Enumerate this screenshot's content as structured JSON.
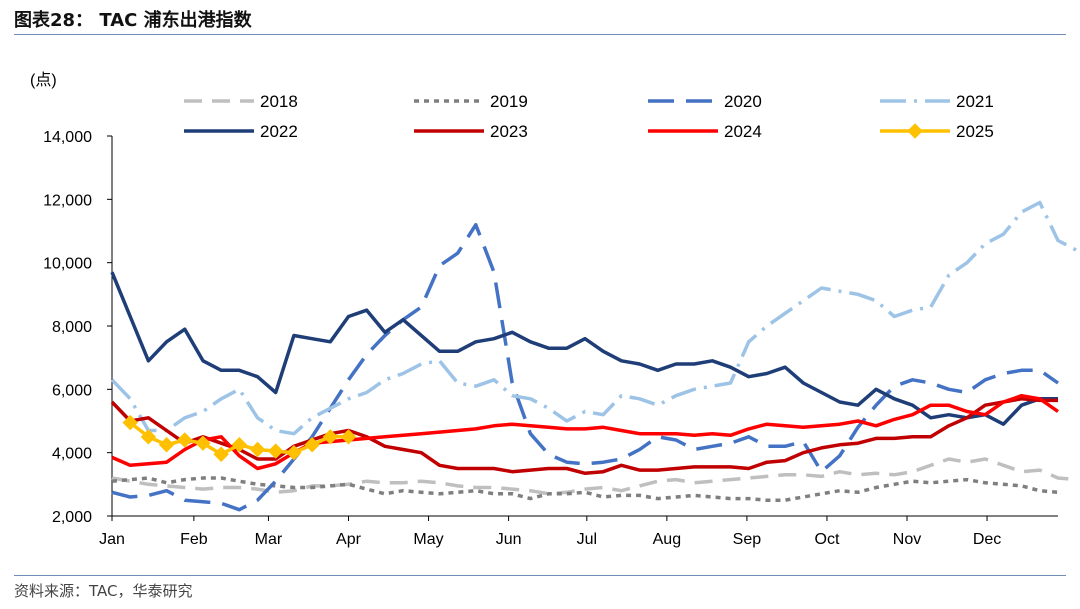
{
  "header": {
    "title": "图表28： TAC 浦东出港指数"
  },
  "footer": {
    "source": "资料来源：TAC，华泰研究"
  },
  "chart_data": {
    "type": "line",
    "unit_label": "(点)",
    "ylim": [
      2000,
      14000
    ],
    "yticks": [
      2000,
      4000,
      6000,
      8000,
      10000,
      12000,
      14000
    ],
    "ytick_labels": [
      "2,000",
      "4,000",
      "6,000",
      "8,000",
      "10,000",
      "12,000",
      "14,000"
    ],
    "xlim": [
      1,
      53
    ],
    "x_unit": "week of year",
    "month_ticks": [
      1,
      5.5,
      9.6,
      14,
      18.4,
      22.8,
      27.1,
      31.5,
      35.9,
      40.3,
      44.7,
      49.1
    ],
    "month_labels": [
      "Jan",
      "Feb",
      "Mar",
      "Apr",
      "May",
      "Jun",
      "Jul",
      "Aug",
      "Sep",
      "Oct",
      "Nov",
      "Dec"
    ],
    "grid": false,
    "legend_position": "top",
    "series": [
      {
        "name": "2018",
        "color": "#bfbfbf",
        "dash": "18,10",
        "width": 3.5,
        "values": [
          3200,
          3100,
          3000,
          2950,
          2900,
          2850,
          2900,
          2900,
          2850,
          2750,
          2800,
          2950,
          2950,
          3000,
          3100,
          3050,
          3050,
          3100,
          3050,
          2950,
          2900,
          2900,
          2850,
          2800,
          2700,
          2750,
          2850,
          2900,
          2800,
          2950,
          3100,
          3150,
          3050,
          3100,
          3150,
          3200,
          3250,
          3300,
          3300,
          3250,
          3400,
          3300,
          3350,
          3300,
          3400,
          3600,
          3800,
          3700,
          3800,
          3600,
          3400,
          3450,
          3200,
          3150
        ]
      },
      {
        "name": "2019",
        "color": "#7f7f7f",
        "dash": "5,5",
        "width": 3.5,
        "values": [
          3100,
          3150,
          3200,
          3050,
          3150,
          3200,
          3200,
          3100,
          3000,
          2950,
          2900,
          2900,
          2950,
          3000,
          2850,
          2700,
          2800,
          2750,
          2700,
          2750,
          2800,
          2700,
          2700,
          2550,
          2700,
          2700,
          2750,
          2600,
          2650,
          2650,
          2550,
          2600,
          2650,
          2600,
          2550,
          2550,
          2500,
          2500,
          2600,
          2700,
          2800,
          2750,
          2900,
          3000,
          3100,
          3050,
          3100,
          3150,
          3050,
          3000,
          2950,
          2800,
          2750
        ]
      },
      {
        "name": "2020",
        "color": "#4472c4",
        "dash": "26,12",
        "width": 3.5,
        "values": [
          2750,
          2600,
          2650,
          2800,
          2500,
          2450,
          2400,
          2200,
          2500,
          3100,
          3800,
          4500,
          5400,
          6300,
          7100,
          7700,
          8200,
          8600,
          9900,
          10300,
          11200,
          9700,
          6200,
          4600,
          3950,
          3700,
          3650,
          3700,
          3800,
          4100,
          4500,
          4400,
          4100,
          4200,
          4300,
          4500,
          4200,
          4200,
          4350,
          3400,
          3900,
          4800,
          5500,
          6100,
          6300,
          6200,
          6000,
          5900,
          6300,
          6500,
          6600,
          6600,
          6200
        ]
      },
      {
        "name": "2021",
        "color": "#9dc3e6",
        "dash": "26,8,3,8",
        "width": 3.5,
        "values": [
          6300,
          5700,
          4700,
          4700,
          5100,
          5300,
          5700,
          6000,
          5100,
          4700,
          4600,
          5100,
          5400,
          5700,
          5900,
          6300,
          6500,
          6800,
          6900,
          6200,
          6100,
          6300,
          5800,
          5700,
          5400,
          5000,
          5300,
          5200,
          5800,
          5700,
          5500,
          5800,
          6000,
          6100,
          6200,
          7500,
          8000,
          8400,
          8800,
          9200,
          9100,
          9000,
          8800,
          8300,
          8500,
          8600,
          9600,
          10000,
          10600,
          10900,
          11600,
          11900,
          10700,
          10400
        ]
      },
      {
        "name": "2022",
        "color": "#1f3e78",
        "dash": "",
        "width": 3.5,
        "values": [
          9700,
          8300,
          6900,
          7500,
          7900,
          6900,
          6600,
          6600,
          6400,
          5900,
          7700,
          7600,
          7500,
          8300,
          8500,
          7800,
          8200,
          7700,
          7200,
          7200,
          7500,
          7600,
          7800,
          7500,
          7300,
          7300,
          7600,
          7200,
          6900,
          6800,
          6600,
          6800,
          6800,
          6900,
          6700,
          6400,
          6500,
          6700,
          6200,
          5900,
          5600,
          5500,
          6000,
          5700,
          5500,
          5100,
          5200,
          5100,
          5200,
          4900,
          5500,
          5700,
          5700
        ]
      },
      {
        "name": "2023",
        "color": "#c00000",
        "dash": "",
        "width": 3.5,
        "values": [
          5600,
          5000,
          5100,
          4700,
          4300,
          4500,
          4300,
          4100,
          3800,
          3800,
          4200,
          4400,
          4600,
          4700,
          4500,
          4200,
          4100,
          4000,
          3600,
          3500,
          3500,
          3500,
          3400,
          3450,
          3500,
          3500,
          3350,
          3400,
          3600,
          3450,
          3450,
          3500,
          3550,
          3550,
          3550,
          3500,
          3700,
          3750,
          4000,
          4150,
          4250,
          4300,
          4450,
          4450,
          4500,
          4500,
          4850,
          5100,
          5500,
          5600,
          5700,
          5650,
          5650
        ]
      },
      {
        "name": "2024",
        "color": "#ff0000",
        "dash": "",
        "width": 3.5,
        "values": [
          3850,
          3600,
          3650,
          3700,
          4100,
          4400,
          4500,
          3900,
          3500,
          3650,
          4000,
          4300,
          4350,
          4400,
          4450,
          4500,
          4550,
          4600,
          4650,
          4700,
          4750,
          4850,
          4900,
          4850,
          4800,
          4750,
          4750,
          4800,
          4700,
          4600,
          4600,
          4600,
          4550,
          4600,
          4550,
          4750,
          4900,
          4850,
          4800,
          4850,
          4900,
          5000,
          4850,
          5050,
          5200,
          5500,
          5500,
          5300,
          5200,
          5600,
          5800,
          5700,
          5300
        ]
      },
      {
        "name": "2025",
        "color": "#ffc000",
        "dash": "",
        "width": 3.5,
        "marker": "diamond",
        "values": [
          null,
          4950,
          4500,
          4250,
          4400,
          4300,
          3950,
          4250,
          4100,
          4050,
          4000,
          4250,
          4500,
          4500
        ]
      }
    ]
  }
}
